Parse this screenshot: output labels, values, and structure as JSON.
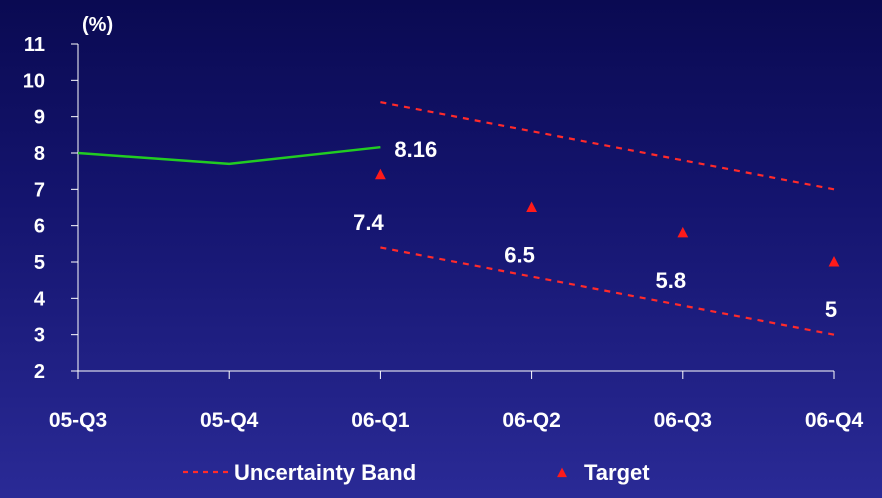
{
  "chart_data": {
    "type": "line",
    "ylabel": "(%)",
    "ylim": [
      2,
      11
    ],
    "yticks": [
      "2",
      "3",
      "4",
      "5",
      "6",
      "7",
      "8",
      "9",
      "10",
      "11"
    ],
    "categories": [
      "05-Q3",
      "05-Q4",
      "06-Q1",
      "06-Q2",
      "06-Q3",
      "06-Q4"
    ],
    "series": [
      {
        "kind": "actual",
        "color": "#22cc22",
        "x": [
          "05-Q3",
          "05-Q4",
          "06-Q1"
        ],
        "values": [
          8.0,
          7.7,
          8.16
        ],
        "end_label": "8.16"
      },
      {
        "name": "Target",
        "kind": "target",
        "color": "#ff1a1a",
        "x": [
          "06-Q1",
          "06-Q2",
          "06-Q3",
          "06-Q4"
        ],
        "values": [
          7.4,
          6.5,
          5.8,
          5.0
        ],
        "labels": [
          "7.4",
          "6.5",
          "5.8",
          "5"
        ]
      },
      {
        "name": "Uncertainty Band",
        "kind": "band-upper",
        "color": "#ff2a2a",
        "x": [
          "06-Q1",
          "06-Q4"
        ],
        "values": [
          9.4,
          7.0
        ]
      },
      {
        "kind": "band-lower",
        "color": "#ff2a2a",
        "x": [
          "06-Q1",
          "06-Q4"
        ],
        "values": [
          5.4,
          3.0
        ]
      }
    ],
    "legend": {
      "placement": "bottom",
      "items": [
        {
          "label": "Uncertainty Band",
          "symbol": "dashed-line",
          "color": "#ff2a2a"
        },
        {
          "label": "Target",
          "symbol": "triangle",
          "color": "#ff1a1a"
        }
      ]
    },
    "grid": false
  }
}
